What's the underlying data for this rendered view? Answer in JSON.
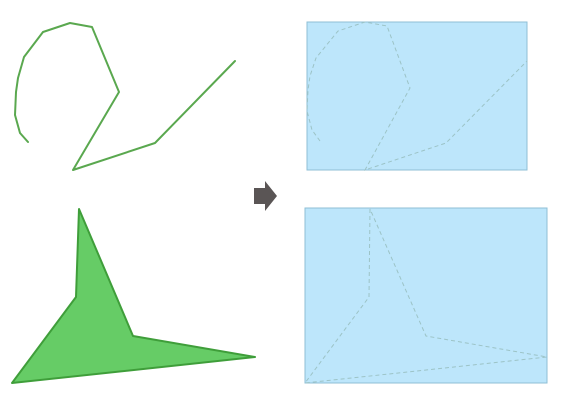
{
  "colors": {
    "stroke_green": "#5aa84f",
    "fill_green": "#66cc66",
    "polygon_stroke": "#3f9e3a",
    "bbox_fill": "#bde6fb",
    "bbox_stroke": "#8fbfd6",
    "dashed": "#9cc3c6",
    "arrow": "#5a5555"
  },
  "icons": {
    "arrow": "right-arrow-icon"
  }
}
